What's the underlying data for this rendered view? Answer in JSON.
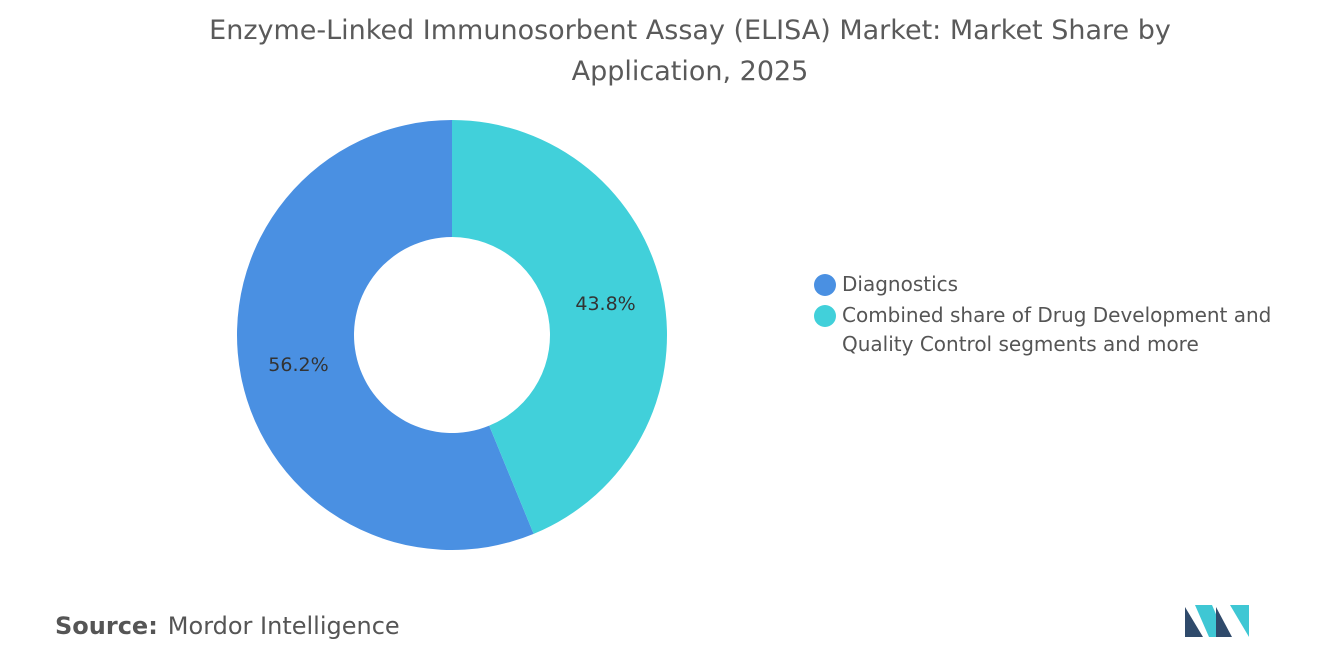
{
  "chart_data": {
    "type": "pie",
    "title": "Enzyme-Linked Immunosorbent Assay (ELISA) Market: Market Share by Application, 2025",
    "series": [
      {
        "name": "Diagnostics",
        "color": "#4a90e2",
        "values": [
          56.2
        ],
        "value_labels": [
          "56.2%"
        ]
      },
      {
        "name": "Combined share of Drug Development and Quality Control segments and more",
        "color": "#41d0da",
        "values": [
          43.8
        ],
        "value_labels": [
          "43.8%"
        ]
      }
    ],
    "source_label": "Source:",
    "source": "Mordor Intelligence"
  }
}
